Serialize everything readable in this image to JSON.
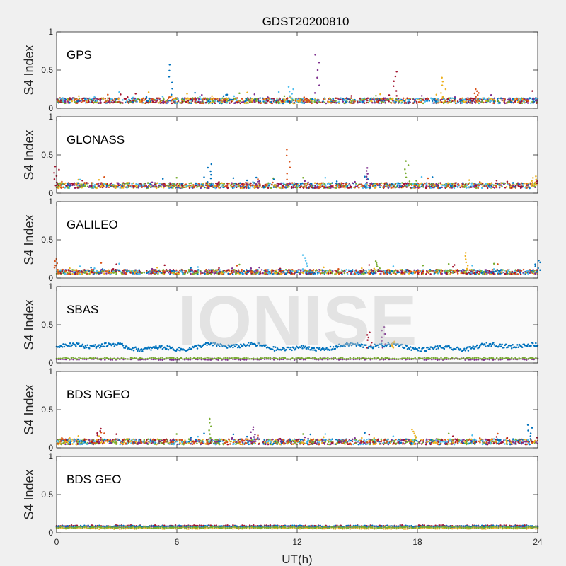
{
  "title": "GDST20200810",
  "watermark": "IONISE",
  "xlabel": "UT(h)",
  "colors": [
    "#0072bd",
    "#d95319",
    "#edb120",
    "#7e2f8e",
    "#77ac30",
    "#4dbeee",
    "#a2142f"
  ],
  "chart_data": [
    {
      "type": "scatter",
      "panel_label": "GPS",
      "ylabel": "S4 Index",
      "xlim": [
        0,
        24
      ],
      "ylim": [
        0,
        1
      ],
      "xticks": [
        "0",
        "6",
        "12",
        "18",
        "24"
      ],
      "yticks": [
        "0",
        "0.5",
        "1"
      ],
      "baseline": 0.1,
      "noise": 0.035,
      "spikes": [
        [
          5.7,
          0.57
        ],
        [
          13.0,
          0.7
        ],
        [
          16.9,
          0.48
        ],
        [
          19.3,
          0.4
        ],
        [
          11.7,
          0.28
        ],
        [
          21.0,
          0.25
        ]
      ]
    },
    {
      "type": "scatter",
      "panel_label": "GLONASS",
      "ylabel": "S4 Index",
      "xlim": [
        0,
        24
      ],
      "ylim": [
        0,
        1
      ],
      "xticks": [
        "0",
        "6",
        "12",
        "18",
        "24"
      ],
      "yticks": [
        "0",
        "0.5",
        "1"
      ],
      "baseline": 0.1,
      "noise": 0.035,
      "spikes": [
        [
          11.6,
          0.57
        ],
        [
          17.5,
          0.42
        ],
        [
          7.6,
          0.38
        ],
        [
          15.5,
          0.33
        ],
        [
          0.0,
          0.35
        ],
        [
          23.8,
          0.22
        ]
      ]
    },
    {
      "type": "scatter",
      "panel_label": "GALILEO",
      "ylabel": "S4 Index",
      "xlim": [
        0,
        24
      ],
      "ylim": [
        0,
        1
      ],
      "xticks": [
        "0",
        "6",
        "12",
        "18",
        "24"
      ],
      "yticks": [
        "0",
        "0.5",
        "1"
      ],
      "baseline": 0.08,
      "noise": 0.03,
      "spikes": [
        [
          20.5,
          0.33
        ],
        [
          12.4,
          0.3
        ],
        [
          0.0,
          0.25
        ],
        [
          16.0,
          0.22
        ],
        [
          24.0,
          0.23
        ]
      ]
    },
    {
      "type": "scatter",
      "panel_label": "SBAS",
      "ylabel": "S4 Index",
      "xlim": [
        0,
        24
      ],
      "ylim": [
        0,
        1
      ],
      "xticks": [
        "0",
        "6",
        "12",
        "18",
        "24"
      ],
      "yticks": [
        "0",
        "0.5",
        "1"
      ],
      "mode": "sbas",
      "spikes": [
        [
          16.3,
          0.47
        ],
        [
          15.6,
          0.4
        ],
        [
          16.8,
          0.28
        ]
      ]
    },
    {
      "type": "scatter",
      "panel_label": "BDS NGEO",
      "ylabel": "S4 Index",
      "xlim": [
        0,
        24
      ],
      "ylim": [
        0,
        1
      ],
      "xticks": [
        "0",
        "6",
        "12",
        "18",
        "24"
      ],
      "yticks": [
        "0",
        "0.5",
        "1"
      ],
      "baseline": 0.08,
      "noise": 0.035,
      "spikes": [
        [
          7.6,
          0.38
        ],
        [
          23.6,
          0.3
        ],
        [
          9.8,
          0.27
        ],
        [
          2.1,
          0.25
        ],
        [
          17.8,
          0.24
        ]
      ]
    },
    {
      "type": "scatter",
      "panel_label": "BDS GEO",
      "ylabel": "S4 Index",
      "xlim": [
        0,
        24
      ],
      "ylim": [
        0,
        1
      ],
      "xticks": [
        "0",
        "6",
        "12",
        "18",
        "24"
      ],
      "yticks": [
        "0",
        "0.5",
        "1"
      ],
      "mode": "geo",
      "spikes": []
    }
  ]
}
